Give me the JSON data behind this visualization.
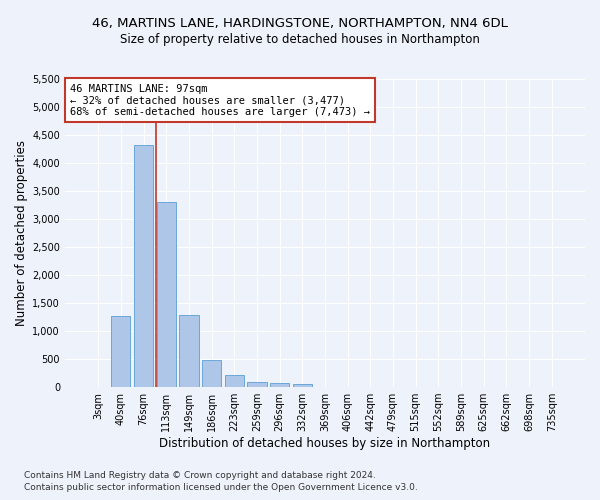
{
  "title_line1": "46, MARTINS LANE, HARDINGSTONE, NORTHAMPTON, NN4 6DL",
  "title_line2": "Size of property relative to detached houses in Northampton",
  "xlabel": "Distribution of detached houses by size in Northampton",
  "ylabel": "Number of detached properties",
  "categories": [
    "3sqm",
    "40sqm",
    "76sqm",
    "113sqm",
    "149sqm",
    "186sqm",
    "223sqm",
    "259sqm",
    "296sqm",
    "332sqm",
    "369sqm",
    "406sqm",
    "442sqm",
    "479sqm",
    "515sqm",
    "552sqm",
    "589sqm",
    "625sqm",
    "662sqm",
    "698sqm",
    "735sqm"
  ],
  "values": [
    0,
    1270,
    4330,
    3300,
    1280,
    490,
    220,
    90,
    65,
    50,
    0,
    0,
    0,
    0,
    0,
    0,
    0,
    0,
    0,
    0,
    0
  ],
  "bar_color": "#aec6e8",
  "bar_edge_color": "#5a9fd4",
  "property_line_color": "#c0392b",
  "annotation_text": "46 MARTINS LANE: 97sqm\n← 32% of detached houses are smaller (3,477)\n68% of semi-detached houses are larger (7,473) →",
  "annotation_box_color": "#c0392b",
  "ylim": [
    0,
    5500
  ],
  "yticks": [
    0,
    500,
    1000,
    1500,
    2000,
    2500,
    3000,
    3500,
    4000,
    4500,
    5000,
    5500
  ],
  "background_color": "#eef2fa",
  "grid_color": "#ffffff",
  "footer_line1": "Contains HM Land Registry data © Crown copyright and database right 2024.",
  "footer_line2": "Contains public sector information licensed under the Open Government Licence v3.0.",
  "title_fontsize": 9.5,
  "subtitle_fontsize": 8.5,
  "axis_label_fontsize": 8.5,
  "tick_fontsize": 7,
  "annotation_fontsize": 7.5,
  "footer_fontsize": 6.5
}
